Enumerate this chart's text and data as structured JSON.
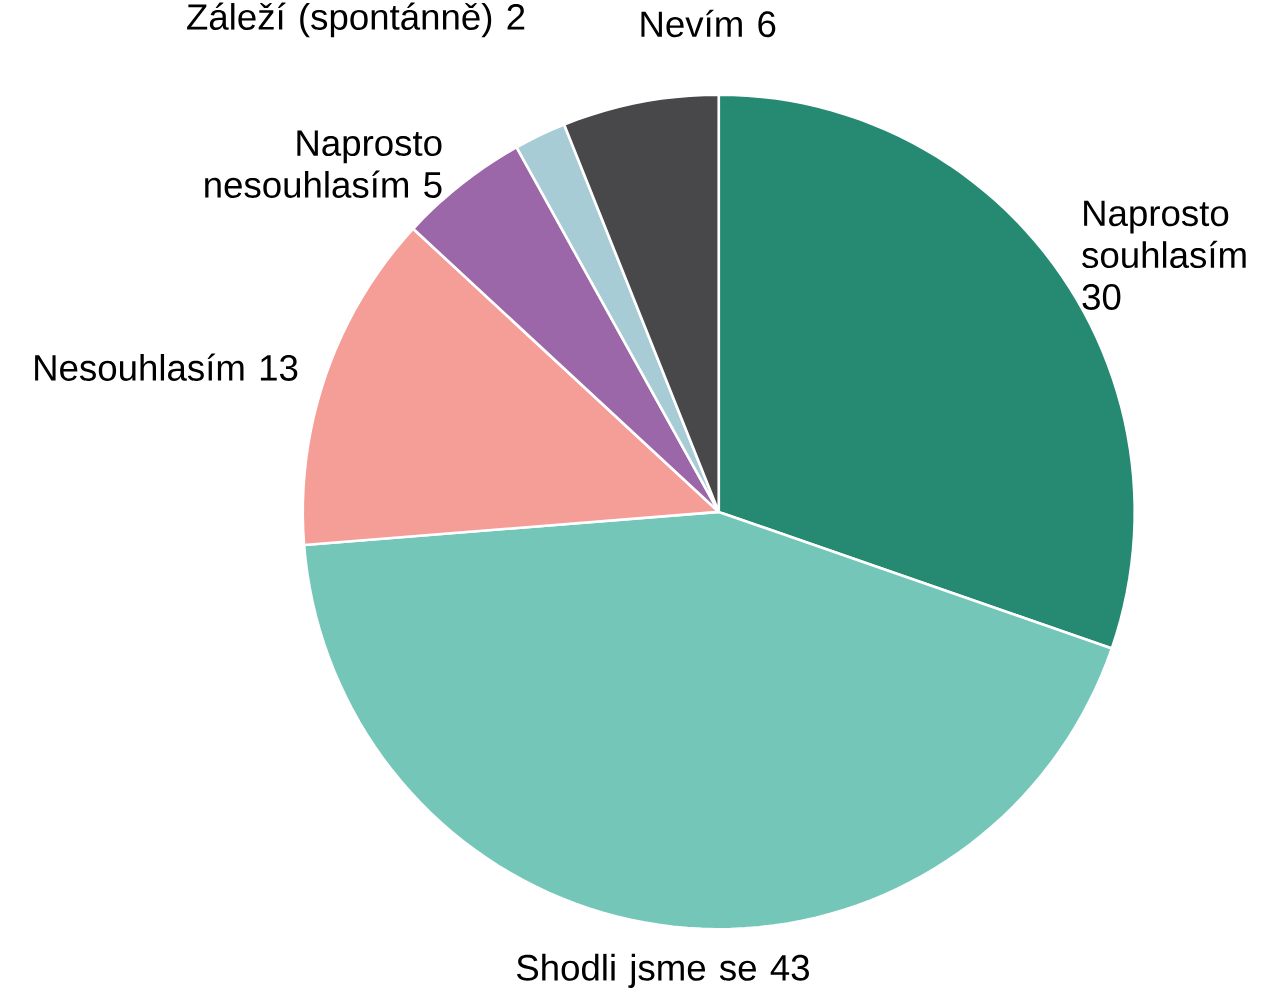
{
  "chart_data": {
    "type": "pie",
    "categories": [
      "Naprosto souhlasím",
      "Shodli jsme se",
      "Nesouhlasím",
      "Naprosto nesouhlasím",
      "Záleží (spontánně)",
      "Nevím"
    ],
    "values": [
      30,
      43,
      13,
      5,
      2,
      6
    ],
    "colors": [
      "#268a73",
      "#74c7b8",
      "#f59d97",
      "#9b67a9",
      "#a8ccd6",
      "#48484a"
    ],
    "data_labels": true
  }
}
